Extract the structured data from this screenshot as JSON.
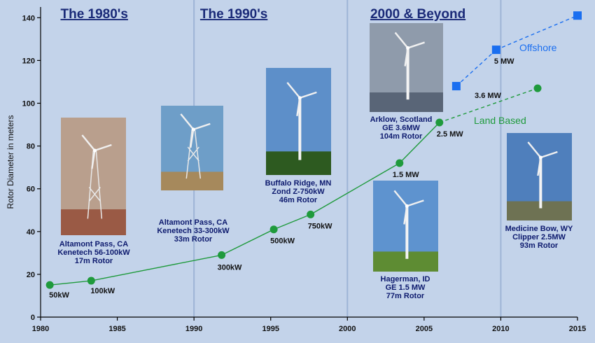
{
  "eras": [
    {
      "title": "The 1980's",
      "x": 1983.5
    },
    {
      "title": "The 1990's",
      "x": 1992.6
    },
    {
      "title": "2000 & Beyond",
      "x": 2004.6
    }
  ],
  "era_dividers": [
    1990,
    2000,
    2010
  ],
  "photos": [
    {
      "name": "altamont-pass-1",
      "caption": [
        "Altamont Pass, CA",
        "Kenetech 56-100kW",
        "17m Rotor"
      ],
      "sky": "#b99f8d",
      "ground": "#9a5a45",
      "tower": "lattice"
    },
    {
      "name": "altamont-pass-2",
      "caption": [
        "Altamont Pass, CA",
        "Kenetech 33-300kW",
        "33m Rotor"
      ],
      "sky": "#6e9ec8",
      "ground": "#a6895c",
      "tower": "lattice"
    },
    {
      "name": "buffalo-ridge",
      "caption": [
        "Buffalo Ridge, MN",
        "Zond Z-750kW",
        "46m Rotor"
      ],
      "sky": "#5d8fc9",
      "ground": "#2d5a20",
      "tower": "tube"
    },
    {
      "name": "arklow",
      "caption": [
        "Arklow, Scotland",
        "GE 3.6MW",
        "104m Rotor"
      ],
      "sky": "#8f9bab",
      "ground": "#596577",
      "tower": "tube"
    },
    {
      "name": "hagerman",
      "caption": [
        "Hagerman, ID",
        "GE 1.5 MW",
        "77m Rotor"
      ],
      "sky": "#5e93cf",
      "ground": "#5e8c33",
      "tower": "tube"
    },
    {
      "name": "medicine-bow",
      "caption": [
        "Medicine Bow, WY",
        "Clipper 2.5MW",
        "93m Rotor"
      ],
      "sky": "#4f7fbc",
      "ground": "#6e7253",
      "tower": "tube"
    }
  ],
  "chart_data": {
    "type": "line",
    "ylabel": "Rotor Diameter in meters",
    "xlabel": "",
    "xlim": [
      1980,
      2015
    ],
    "ylim": [
      0,
      145
    ],
    "x_ticks": [
      1980,
      1985,
      1990,
      1995,
      2000,
      2005,
      2010,
      2015
    ],
    "y_ticks": [
      0,
      20,
      40,
      60,
      80,
      100,
      120,
      140
    ],
    "series": [
      {
        "name": "Land Based",
        "color": "#1f9a3c",
        "marker": "circle",
        "points": [
          {
            "x": 1980.6,
            "y": 15,
            "label": "50kW"
          },
          {
            "x": 1983.3,
            "y": 17,
            "label": "100kW"
          },
          {
            "x": 1991.8,
            "y": 29,
            "label": "300kW"
          },
          {
            "x": 1995.2,
            "y": 41,
            "label": "500kW"
          },
          {
            "x": 1997.6,
            "y": 48,
            "label": "750kW"
          },
          {
            "x": 2003.4,
            "y": 72,
            "label": "1.5 MW"
          },
          {
            "x": 2006.0,
            "y": 91,
            "label": "2.5 MW"
          },
          {
            "x": 2012.4,
            "y": 107,
            "label": "3.6 MW",
            "dashed": true
          }
        ]
      },
      {
        "name": "Offshore",
        "color": "#1a6ef0",
        "marker": "square",
        "dashed": true,
        "points": [
          {
            "x": 2007.1,
            "y": 108,
            "label": ""
          },
          {
            "x": 2009.7,
            "y": 125,
            "label": "5 MW"
          },
          {
            "x": 2015.0,
            "y": 141,
            "label": ""
          }
        ]
      }
    ]
  }
}
